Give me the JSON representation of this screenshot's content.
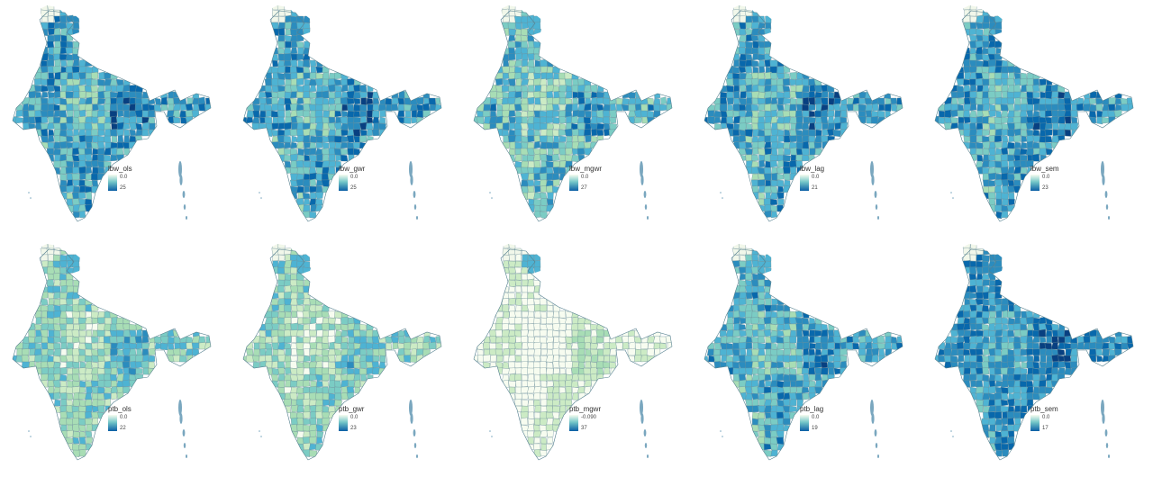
{
  "colors": {
    "palette": [
      "#f7fcf0",
      "#ccebc5",
      "#a8ddb5",
      "#7bccc4",
      "#4eb3d3",
      "#2b8cbe",
      "#0868ac",
      "#084081"
    ],
    "border": "#6c8f9a",
    "island": "#7aa7bf"
  },
  "panels": [
    {
      "id": "lbw_ols",
      "legend_title": "lbw_ols",
      "legend_min": "0.0",
      "legend_max": "25",
      "level": 0.62,
      "spread": 0.22
    },
    {
      "id": "lbw_gwr",
      "legend_title": "lbw_gwr",
      "legend_min": "0.0",
      "legend_max": "25",
      "level": 0.63,
      "spread": 0.22
    },
    {
      "id": "lbw_mgwr",
      "legend_title": "lbw_mgwr",
      "legend_min": "0.0",
      "legend_max": "27",
      "level": 0.52,
      "spread": 0.24
    },
    {
      "id": "lbw_lag",
      "legend_title": "lbw_lag",
      "legend_min": "0.0",
      "legend_max": "21",
      "level": 0.62,
      "spread": 0.22
    },
    {
      "id": "lbw_sem",
      "legend_title": "lbw_sem",
      "legend_min": "0.0",
      "legend_max": "23",
      "level": 0.64,
      "spread": 0.2
    },
    {
      "id": "ptb_ols",
      "legend_title": "ptb_ols",
      "legend_min": "0.0",
      "legend_max": "22",
      "level": 0.4,
      "spread": 0.2
    },
    {
      "id": "ptb_gwr",
      "legend_title": "ptb_gwr",
      "legend_min": "0.0",
      "legend_max": "23",
      "level": 0.35,
      "spread": 0.18
    },
    {
      "id": "ptb_mgwr",
      "legend_title": "ptb_mgwr",
      "legend_min": "-0.090",
      "legend_max": "37",
      "level": 0.12,
      "spread": 0.12
    },
    {
      "id": "ptb_lag",
      "legend_title": "ptb_lag",
      "legend_min": "0.0",
      "legend_max": "19",
      "level": 0.58,
      "spread": 0.2
    },
    {
      "id": "ptb_sem",
      "legend_title": "ptb_sem",
      "legend_min": "0.0",
      "legend_max": "17",
      "level": 0.7,
      "spread": 0.16
    }
  ]
}
